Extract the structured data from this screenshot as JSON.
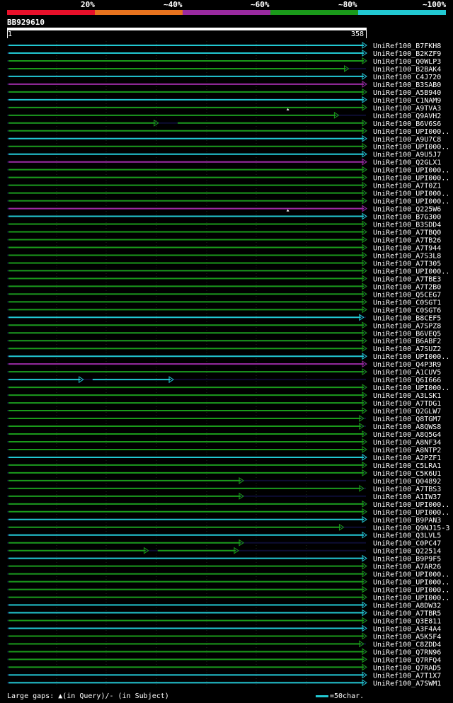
{
  "legend": {
    "labels": [
      "20%",
      "~40%",
      "~60%",
      "~80%",
      "~100%"
    ],
    "colors": [
      "#e8102a",
      "#e8731e",
      "#9a2aa0",
      "#1a9a1a",
      "#22c8d2"
    ]
  },
  "query": {
    "id": "BB929610",
    "start": "1",
    "end": "358"
  },
  "footer": {
    "gaps": "Large gaps: ▲(in Query)/- (in Subject)",
    "scale": "=50char."
  },
  "colors": {
    "cyan": "#22c8d2",
    "green": "#1a9a1a",
    "purple": "#9a2aa0"
  },
  "hits": [
    {
      "label": "UniRef100_B7FKH8",
      "color": "cyan",
      "segs": [
        [
          1,
          358
        ]
      ],
      "gap": null
    },
    {
      "label": "UniRef100_B2KZF9",
      "color": "cyan",
      "segs": [
        [
          1,
          358
        ]
      ],
      "gap": null
    },
    {
      "label": "UniRef100_Q0WLP3",
      "color": "green",
      "segs": [
        [
          1,
          358
        ]
      ],
      "gap": null
    },
    {
      "label": "UniRef100_B2BAK4",
      "color": "green",
      "segs": [
        [
          1,
          340
        ]
      ],
      "gap": null
    },
    {
      "label": "UniRef100_C4J720",
      "color": "cyan",
      "segs": [
        [
          1,
          358
        ]
      ],
      "gap": null
    },
    {
      "label": "UniRef100_B3SAB0",
      "color": "purple",
      "segs": [
        [
          1,
          358
        ]
      ],
      "gap": null
    },
    {
      "label": "UniRef100_A5B940",
      "color": "green",
      "segs": [
        [
          1,
          358
        ]
      ],
      "gap": null
    },
    {
      "label": "UniRef100_C1NAM9",
      "color": "cyan",
      "segs": [
        [
          1,
          358
        ]
      ],
      "gap": null
    },
    {
      "label": "UniRef100_A9TVA3",
      "color": "green",
      "segs": [
        [
          1,
          358
        ]
      ],
      "gap": "q"
    },
    {
      "label": "UniRef100_Q9AVH2",
      "color": "green",
      "segs": [
        [
          1,
          330
        ]
      ],
      "gap": null
    },
    {
      "label": "UniRef100_B6V6S6",
      "color": "green",
      "segs": [
        [
          1,
          150
        ],
        [
          170,
          358
        ]
      ],
      "gap": null
    },
    {
      "label": "UniRef100_UPI000..",
      "color": "green",
      "segs": [
        [
          1,
          358
        ]
      ],
      "gap": null
    },
    {
      "label": "UniRef100_A9U7C8",
      "color": "cyan",
      "segs": [
        [
          1,
          358
        ]
      ],
      "gap": null
    },
    {
      "label": "UniRef100_UPI000..",
      "color": "green",
      "segs": [
        [
          1,
          358
        ]
      ],
      "gap": null
    },
    {
      "label": "UniRef100_A9U5J7",
      "color": "cyan",
      "segs": [
        [
          1,
          358
        ]
      ],
      "gap": null
    },
    {
      "label": "UniRef100_Q2GLX1",
      "color": "purple",
      "segs": [
        [
          1,
          358
        ]
      ],
      "gap": null
    },
    {
      "label": "UniRef100_UPI000..",
      "color": "green",
      "segs": [
        [
          1,
          358
        ]
      ],
      "gap": null
    },
    {
      "label": "UniRef100_UPI000..",
      "color": "green",
      "segs": [
        [
          1,
          358
        ]
      ],
      "gap": null
    },
    {
      "label": "UniRef100_A7T0Z1",
      "color": "green",
      "segs": [
        [
          1,
          358
        ]
      ],
      "gap": null
    },
    {
      "label": "UniRef100_UPI000..",
      "color": "green",
      "segs": [
        [
          1,
          358
        ]
      ],
      "gap": null
    },
    {
      "label": "UniRef100_UPI000..",
      "color": "green",
      "segs": [
        [
          1,
          358
        ]
      ],
      "gap": null
    },
    {
      "label": "UniRef100_Q225W6",
      "color": "purple",
      "segs": [
        [
          1,
          358
        ]
      ],
      "gap": "q"
    },
    {
      "label": "UniRef100_B7G300",
      "color": "cyan",
      "segs": [
        [
          1,
          358
        ]
      ],
      "gap": null
    },
    {
      "label": "UniRef100_B3SDD4",
      "color": "green",
      "segs": [
        [
          1,
          358
        ]
      ],
      "gap": null
    },
    {
      "label": "UniRef100_A7TBQ0",
      "color": "green",
      "segs": [
        [
          1,
          358
        ]
      ],
      "gap": null
    },
    {
      "label": "UniRef100_A7TB26",
      "color": "green",
      "segs": [
        [
          1,
          358
        ]
      ],
      "gap": null
    },
    {
      "label": "UniRef100_A7T944",
      "color": "green",
      "segs": [
        [
          1,
          358
        ]
      ],
      "gap": null
    },
    {
      "label": "UniRef100_A7S3L8",
      "color": "green",
      "segs": [
        [
          1,
          358
        ]
      ],
      "gap": null
    },
    {
      "label": "UniRef100_A7T305",
      "color": "green",
      "segs": [
        [
          1,
          358
        ]
      ],
      "gap": null
    },
    {
      "label": "UniRef100_UPI000..",
      "color": "green",
      "segs": [
        [
          1,
          358
        ]
      ],
      "gap": null
    },
    {
      "label": "UniRef100_A7TBE3",
      "color": "green",
      "segs": [
        [
          1,
          358
        ]
      ],
      "gap": null
    },
    {
      "label": "UniRef100_A7T2B0",
      "color": "green",
      "segs": [
        [
          1,
          358
        ]
      ],
      "gap": null
    },
    {
      "label": "UniRef100_Q5CEG7",
      "color": "green",
      "segs": [
        [
          1,
          358
        ]
      ],
      "gap": null
    },
    {
      "label": "UniRef100_C0SGT1",
      "color": "green",
      "segs": [
        [
          1,
          358
        ]
      ],
      "gap": null
    },
    {
      "label": "UniRef100_C0SGT6",
      "color": "green",
      "segs": [
        [
          1,
          358
        ]
      ],
      "gap": null
    },
    {
      "label": "UniRef100_B8CEF5",
      "color": "cyan",
      "segs": [
        [
          1,
          355
        ]
      ],
      "gap": null
    },
    {
      "label": "UniRef100_A7SPZ8",
      "color": "green",
      "segs": [
        [
          1,
          358
        ]
      ],
      "gap": null
    },
    {
      "label": "UniRef100_B6VEQ5",
      "color": "green",
      "segs": [
        [
          1,
          358
        ]
      ],
      "gap": null
    },
    {
      "label": "UniRef100_B6ABF2",
      "color": "green",
      "segs": [
        [
          1,
          358
        ]
      ],
      "gap": null
    },
    {
      "label": "UniRef100_A7SUZ2",
      "color": "green",
      "segs": [
        [
          1,
          358
        ]
      ],
      "gap": null
    },
    {
      "label": "UniRef100_UPI000..",
      "color": "cyan",
      "segs": [
        [
          1,
          358
        ]
      ],
      "gap": null
    },
    {
      "label": "UniRef100_Q4P3R9",
      "color": "purple",
      "segs": [
        [
          1,
          358
        ]
      ],
      "gap": null
    },
    {
      "label": "UniRef100_A1CUV5",
      "color": "green",
      "segs": [
        [
          1,
          358
        ]
      ],
      "gap": null
    },
    {
      "label": "UniRef100_Q6I666",
      "color": "cyan",
      "segs": [
        [
          1,
          75
        ],
        [
          85,
          165
        ]
      ],
      "gap": null
    },
    {
      "label": "UniRef100_UPI000..",
      "color": "green",
      "segs": [
        [
          1,
          358
        ]
      ],
      "gap": null
    },
    {
      "label": "UniRef100_A3LSK1",
      "color": "green",
      "segs": [
        [
          1,
          358
        ]
      ],
      "gap": null
    },
    {
      "label": "UniRef100_A7TDG1",
      "color": "green",
      "segs": [
        [
          1,
          358
        ]
      ],
      "gap": null
    },
    {
      "label": "UniRef100_Q2GLW7",
      "color": "green",
      "segs": [
        [
          1,
          358
        ]
      ],
      "gap": null
    },
    {
      "label": "UniRef100_Q8TGM7",
      "color": "green",
      "segs": [
        [
          1,
          355
        ]
      ],
      "gap": null
    },
    {
      "label": "UniRef100_A8QWS8",
      "color": "green",
      "segs": [
        [
          1,
          355
        ]
      ],
      "gap": null
    },
    {
      "label": "UniRef100_A8Q5G4",
      "color": "green",
      "segs": [
        [
          1,
          358
        ]
      ],
      "gap": null
    },
    {
      "label": "UniRef100_A8NF34",
      "color": "green",
      "segs": [
        [
          1,
          358
        ]
      ],
      "gap": null
    },
    {
      "label": "UniRef100_A8NTP2",
      "color": "green",
      "segs": [
        [
          1,
          358
        ]
      ],
      "gap": null
    },
    {
      "label": "UniRef100_A2PZF1",
      "color": "cyan",
      "segs": [
        [
          1,
          358
        ]
      ],
      "gap": null
    },
    {
      "label": "UniRef100_C5LRA1",
      "color": "green",
      "segs": [
        [
          1,
          358
        ]
      ],
      "gap": null
    },
    {
      "label": "UniRef100_C5K6U1",
      "color": "green",
      "segs": [
        [
          1,
          358
        ]
      ],
      "gap": null
    },
    {
      "label": "UniRef100_Q04892",
      "color": "green",
      "segs": [
        [
          1,
          235
        ]
      ],
      "gap": null
    },
    {
      "label": "UniRef100_A7TBS3",
      "color": "green",
      "segs": [
        [
          1,
          355
        ]
      ],
      "gap": null
    },
    {
      "label": "UniRef100_A1IW37",
      "color": "green",
      "segs": [
        [
          1,
          235
        ]
      ],
      "gap": null
    },
    {
      "label": "UniRef100_UPI000..",
      "color": "green",
      "segs": [
        [
          1,
          358
        ]
      ],
      "gap": null
    },
    {
      "label": "UniRef100_UPI000..",
      "color": "green",
      "segs": [
        [
          1,
          358
        ]
      ],
      "gap": null
    },
    {
      "label": "UniRef100_B9PAN3",
      "color": "cyan",
      "segs": [
        [
          1,
          358
        ]
      ],
      "gap": null
    },
    {
      "label": "UniRef100_Q9NJ15-3",
      "color": "green",
      "segs": [
        [
          1,
          335
        ]
      ],
      "gap": null
    },
    {
      "label": "UniRef100_Q3LVL5",
      "color": "cyan",
      "segs": [
        [
          1,
          358
        ]
      ],
      "gap": null
    },
    {
      "label": "UniRef100_C0PC47",
      "color": "green",
      "segs": [
        [
          1,
          235
        ]
      ],
      "gap": null
    },
    {
      "label": "UniRef100_Q22514",
      "color": "green",
      "segs": [
        [
          1,
          140
        ],
        [
          150,
          230
        ]
      ],
      "gap": null
    },
    {
      "label": "UniRef100_B9P9F5",
      "color": "cyan",
      "segs": [
        [
          1,
          358
        ]
      ],
      "gap": null
    },
    {
      "label": "UniRef100_A7AR26",
      "color": "green",
      "segs": [
        [
          1,
          358
        ]
      ],
      "gap": null
    },
    {
      "label": "UniRef100_UPI000..",
      "color": "green",
      "segs": [
        [
          1,
          358
        ]
      ],
      "gap": null
    },
    {
      "label": "UniRef100_UPI000..",
      "color": "green",
      "segs": [
        [
          1,
          358
        ]
      ],
      "gap": null
    },
    {
      "label": "UniRef100_UPI000..",
      "color": "green",
      "segs": [
        [
          1,
          358
        ]
      ],
      "gap": null
    },
    {
      "label": "UniRef100_UPI000..",
      "color": "green",
      "segs": [
        [
          1,
          358
        ]
      ],
      "gap": null
    },
    {
      "label": "UniRef100_A8DW32",
      "color": "cyan",
      "segs": [
        [
          1,
          358
        ]
      ],
      "gap": null
    },
    {
      "label": "UniRef100_A7TBR5",
      "color": "cyan",
      "segs": [
        [
          1,
          358
        ]
      ],
      "gap": null
    },
    {
      "label": "UniRef100_Q3E811",
      "color": "green",
      "segs": [
        [
          1,
          358
        ]
      ],
      "gap": null
    },
    {
      "label": "UniRef100_A3F4A4",
      "color": "cyan",
      "segs": [
        [
          1,
          358
        ]
      ],
      "gap": null
    },
    {
      "label": "UniRef100_A5K5F4",
      "color": "green",
      "segs": [
        [
          1,
          358
        ]
      ],
      "gap": null
    },
    {
      "label": "UniRef100_C8ZDD4",
      "color": "green",
      "segs": [
        [
          1,
          355
        ]
      ],
      "gap": null
    },
    {
      "label": "UniRef100_Q7RN96",
      "color": "green",
      "segs": [
        [
          1,
          358
        ]
      ],
      "gap": null
    },
    {
      "label": "UniRef100_Q7RFQ4",
      "color": "green",
      "segs": [
        [
          1,
          358
        ]
      ],
      "gap": null
    },
    {
      "label": "UniRef100_Q7RAD5",
      "color": "green",
      "segs": [
        [
          1,
          358
        ]
      ],
      "gap": null
    },
    {
      "label": "UniRef100_A7T1X7",
      "color": "cyan",
      "segs": [
        [
          1,
          358
        ]
      ],
      "gap": null
    },
    {
      "label": "UniRef100_A7SWM1",
      "color": "cyan",
      "segs": [
        [
          1,
          358
        ]
      ],
      "gap": null
    }
  ]
}
